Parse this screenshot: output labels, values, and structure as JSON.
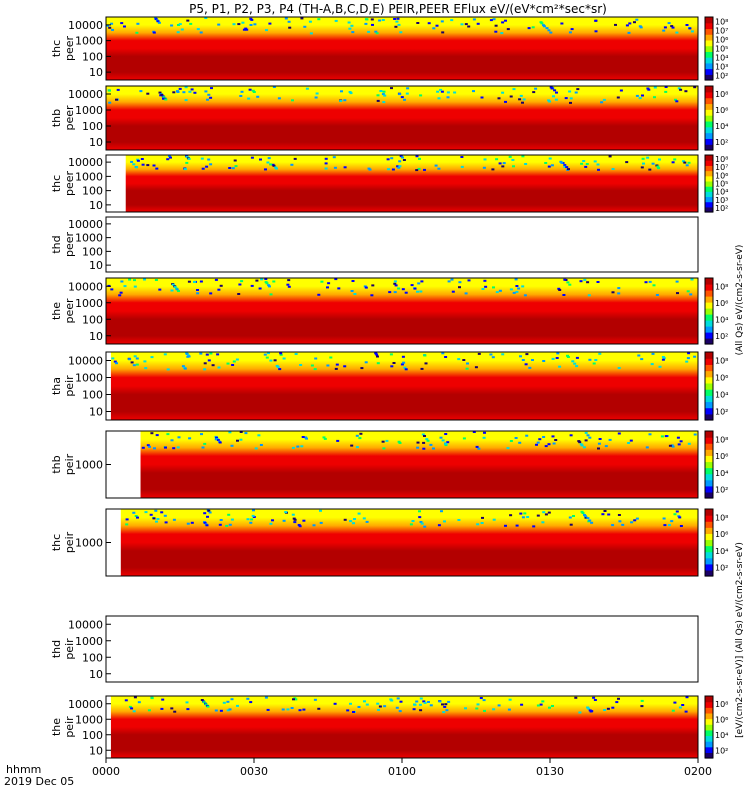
{
  "title": "P5, P1, P2, P3, P4 (TH-A,B,C,D,E) PEIR,PEER EFlux eV/(eV*cm²*sec*sr)",
  "footer": {
    "time_label": "hhmm",
    "date_label": "2019 Dec 05"
  },
  "x_ticks": [
    "0000",
    "0030",
    "0100",
    "0130",
    "0200"
  ],
  "colorbar_label_top": "(All Qs) eV/(cm2-s-sr-eV)",
  "colorbar_label_bottom": "[eV/(cm2-s-sr-eV)] (All Qs) eV/(cm2-s-sr-eV)",
  "colormap": [
    "#1a0066",
    "#0000ff",
    "#0099ff",
    "#00dddd",
    "#00ff66",
    "#99ff00",
    "#ffff00",
    "#ffaa00",
    "#ff5500",
    "#ee0000",
    "#b30000"
  ],
  "chart_data": [
    {
      "type": "heatmap",
      "ylabel": "thc\npeer",
      "yticks": [
        "10",
        "100",
        "1000",
        "10000"
      ],
      "colorbar_ticks": [
        "10²",
        "10³",
        "10⁴",
        "10⁵",
        "10⁶",
        "10⁷",
        "10⁸"
      ],
      "data_start": "0000"
    },
    {
      "type": "heatmap",
      "ylabel": "thb\npeer",
      "yticks": [
        "10",
        "100",
        "1000",
        "10000"
      ],
      "colorbar_ticks": [
        "10²",
        "10⁴",
        "10⁶",
        "10⁸"
      ],
      "data_start": "0000"
    },
    {
      "type": "heatmap",
      "ylabel": "thc\npeer",
      "yticks": [
        "10",
        "100",
        "1000",
        "10000"
      ],
      "colorbar_ticks": [
        "10²",
        "10³",
        "10⁴",
        "10⁵",
        "10⁶",
        "10⁷",
        "10⁸"
      ],
      "data_start": "0004"
    },
    {
      "type": "heatmap",
      "ylabel": "thd\npeer",
      "yticks": [
        "10",
        "100",
        "1000",
        "10000"
      ],
      "colorbar_ticks": [],
      "data_start": null
    },
    {
      "type": "heatmap",
      "ylabel": "the\npeer",
      "yticks": [
        "10",
        "100",
        "1000",
        "10000"
      ],
      "colorbar_ticks": [
        "10²",
        "10⁴",
        "10⁶",
        "10⁸"
      ],
      "data_start": "0000"
    },
    {
      "type": "heatmap",
      "ylabel": "tha\npeir",
      "yticks": [
        "10",
        "100",
        "1000",
        "10000"
      ],
      "colorbar_ticks": [
        "10²",
        "10⁴",
        "10⁶",
        "10⁸"
      ],
      "data_start": "0001"
    },
    {
      "type": "heatmap",
      "ylabel": "thb\npeir",
      "yticks": [
        "1000"
      ],
      "colorbar_ticks": [
        "10²",
        "10⁴",
        "10⁶",
        "10⁸"
      ],
      "data_start": "0007"
    },
    {
      "type": "heatmap",
      "ylabel": "thc\npeir",
      "yticks": [
        "1000"
      ],
      "colorbar_ticks": [
        "10²",
        "10⁴",
        "10⁶",
        "10⁸"
      ],
      "data_start": "0003"
    },
    {
      "type": "heatmap",
      "ylabel": "thd\npeir",
      "yticks": [
        "10",
        "100",
        "1000",
        "10000"
      ],
      "colorbar_ticks": [],
      "data_start": null
    },
    {
      "type": "heatmap",
      "ylabel": "the\npeir",
      "yticks": [
        "10",
        "100",
        "1000",
        "10000"
      ],
      "colorbar_ticks": [
        "10²",
        "10⁴",
        "10⁶",
        "10⁸"
      ],
      "data_start": "0001"
    }
  ]
}
